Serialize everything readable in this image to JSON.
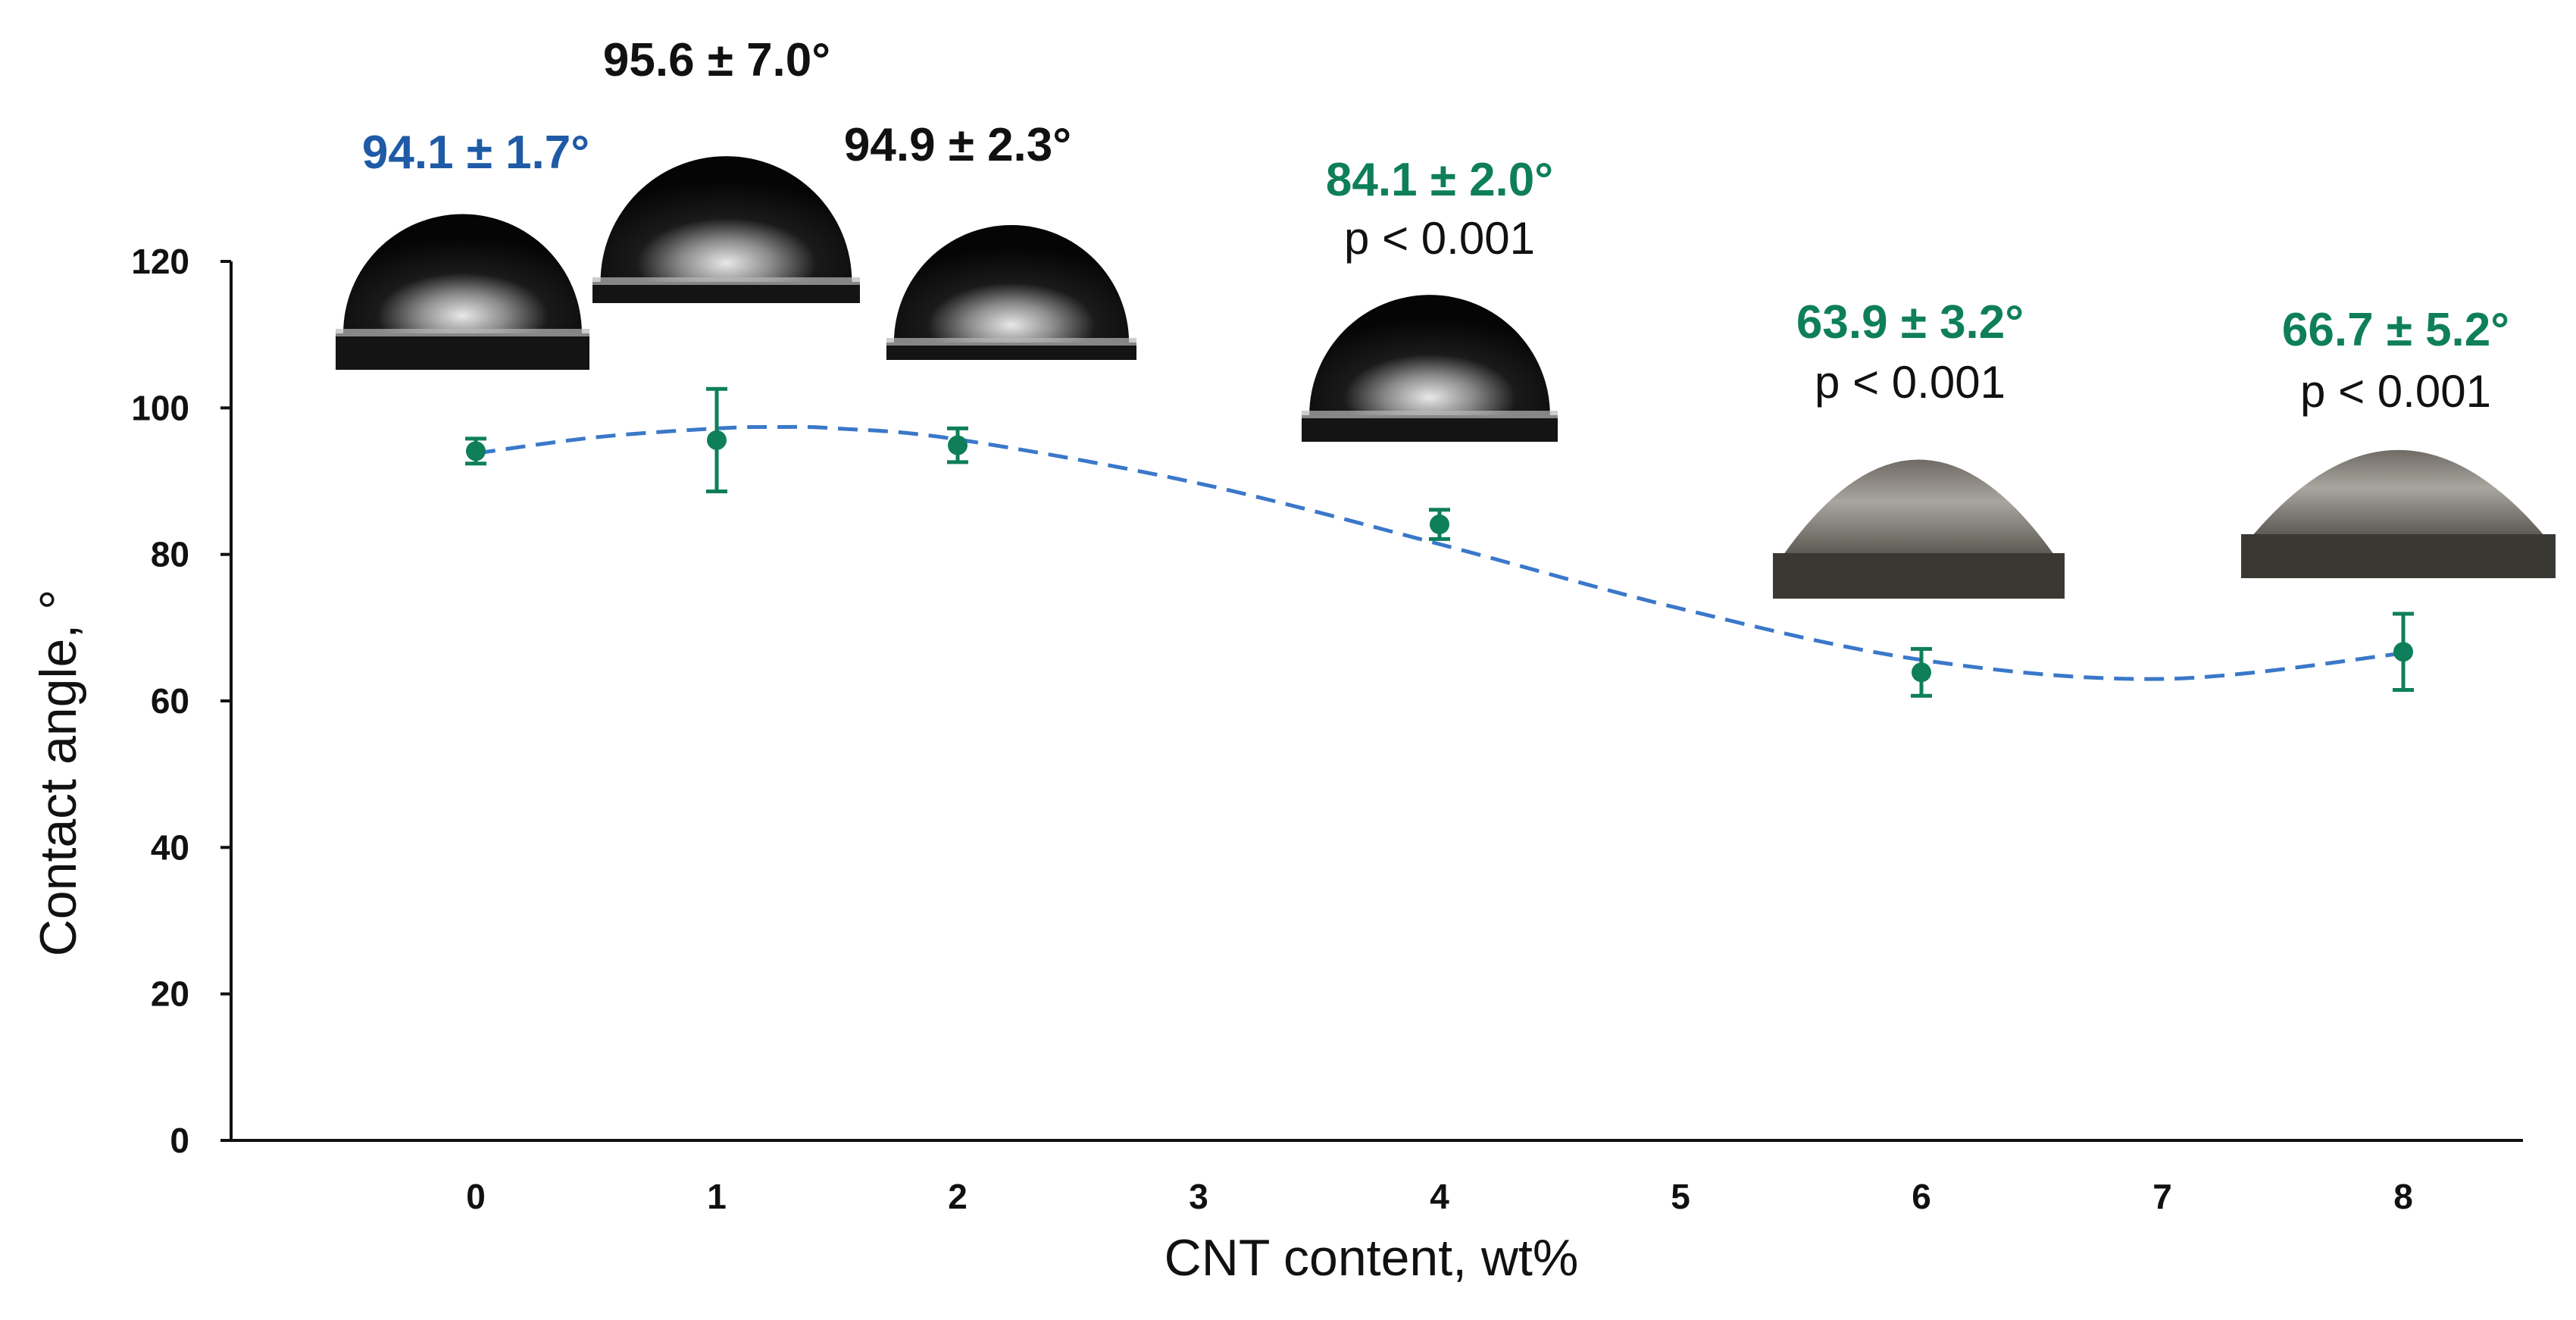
{
  "chart_data": {
    "type": "scatter",
    "title": "",
    "xlabel": "CNT content, wt%",
    "ylabel": "Contact angle, °",
    "xlim": [
      -1,
      8.5
    ],
    "ylim": [
      0,
      120
    ],
    "x_ticks": [
      0,
      1,
      2,
      3,
      4,
      5,
      6,
      7,
      8
    ],
    "y_ticks": [
      0,
      20,
      40,
      60,
      80,
      100,
      120
    ],
    "grid": false,
    "series": [
      {
        "name": "Contact angle",
        "x": [
          0,
          1,
          2,
          4,
          6,
          8
        ],
        "y": [
          94.1,
          95.6,
          94.9,
          84.1,
          63.9,
          66.7
        ],
        "error": [
          1.7,
          7.0,
          2.3,
          2.0,
          3.2,
          5.2
        ],
        "color": "#0e7f5a"
      }
    ],
    "trendline": {
      "style": "dashed",
      "color": "#3a78c9",
      "x": [
        0,
        0.5,
        1,
        1.25,
        1.5,
        2,
        3,
        4,
        5,
        6,
        7,
        8
      ],
      "y": [
        93.8,
        96.0,
        97.2,
        97.4,
        97.2,
        95.7,
        89.7,
        81.4,
        72.6,
        65.6,
        63.0,
        66.5
      ]
    },
    "annotations": [
      {
        "x": 0,
        "value_text": "94.1 ± 1.7°",
        "p_text": "",
        "color": "#1f5aa6"
      },
      {
        "x": 1,
        "value_text": "95.6 ± 7.0°",
        "p_text": "",
        "color": "#111111"
      },
      {
        "x": 2,
        "value_text": "94.9 ± 2.3°",
        "p_text": "",
        "color": "#111111"
      },
      {
        "x": 4,
        "value_text": "84.1 ± 2.0°",
        "p_text": "p < 0.001",
        "color": "#0e7f5a"
      },
      {
        "x": 6,
        "value_text": "63.9 ± 3.2°",
        "p_text": "p < 0.001",
        "color": "#0e7f5a"
      },
      {
        "x": 8,
        "value_text": "66.7 ± 5.2°",
        "p_text": "p < 0.001",
        "color": "#0e7f5a"
      }
    ],
    "droplet_images": [
      {
        "x": 0,
        "shape": "hemisphere",
        "tone": "dark"
      },
      {
        "x": 1,
        "shape": "hemisphere",
        "tone": "dark"
      },
      {
        "x": 2,
        "shape": "hemisphere",
        "tone": "dark"
      },
      {
        "x": 4,
        "shape": "hemisphere",
        "tone": "dark"
      },
      {
        "x": 6,
        "shape": "flattened",
        "tone": "gray"
      },
      {
        "x": 8,
        "shape": "flattened",
        "tone": "gray"
      }
    ]
  }
}
